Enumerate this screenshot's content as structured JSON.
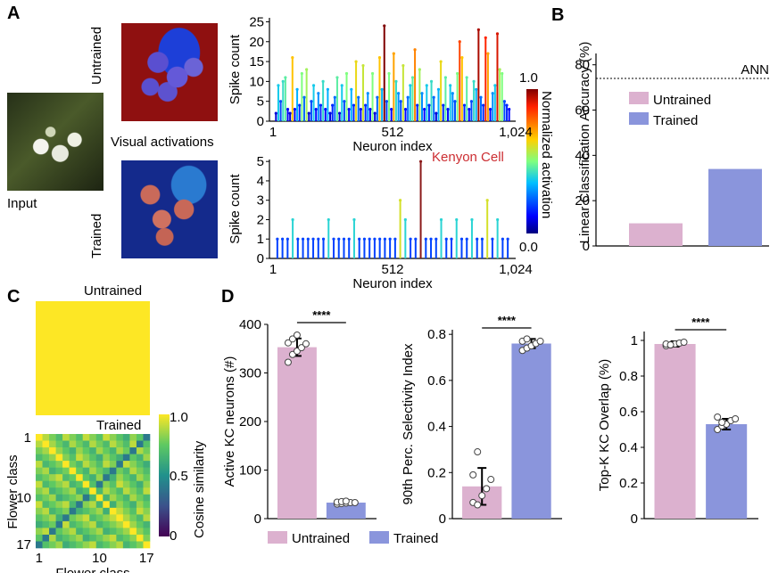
{
  "panels": {
    "a": "A",
    "b": "B",
    "c": "C",
    "d": "D"
  },
  "panel_a": {
    "input_label": "Input",
    "untrained_label": "Untrained",
    "trained_label": "Trained",
    "visual_activations_label": "Visual activations",
    "kenyon_cell_label": "Kenyon Cell",
    "colorbar_label": "Normalized activation",
    "colorbar_ticks": [
      "1.0",
      "0.0"
    ]
  },
  "panel_c": {
    "untrained_label": "Untrained",
    "trained_label": "Trained",
    "colorbar_label": "Cosine similarity",
    "colorbar_ticks": [
      "1.0",
      "0.5",
      "0"
    ]
  },
  "legend_d": [
    "Untrained",
    "Trained"
  ],
  "colors": {
    "untrained": "#dcb1cf",
    "trained": "#8a95dc",
    "kenyon": "#cc2e32"
  },
  "chart_data": [
    {
      "id": "untrained_spikes",
      "type": "bar",
      "xlabel": "Neuron index",
      "ylabel": "Spike count",
      "xticks": [
        "1",
        "512",
        "1,024"
      ],
      "yticks": [
        0,
        5,
        10,
        15,
        20,
        25
      ],
      "xlim": [
        1,
        1024
      ],
      "ylim": [
        0,
        26
      ],
      "values": [
        2,
        9,
        5,
        10,
        11,
        3,
        2,
        16,
        3,
        8,
        4,
        12,
        6,
        13,
        2,
        5,
        9,
        3,
        7,
        4,
        10,
        3,
        8,
        2,
        4,
        6,
        11,
        2,
        9,
        5,
        12,
        3,
        8,
        4,
        15,
        6,
        3,
        14,
        4,
        7,
        3,
        12,
        2,
        6,
        16,
        8,
        24,
        5,
        12,
        3,
        17,
        10,
        7,
        5,
        14,
        3,
        6,
        9,
        11,
        18,
        4,
        13,
        7,
        3,
        9,
        4,
        10,
        6,
        2,
        8,
        15,
        4,
        11,
        3,
        9,
        7,
        5,
        12,
        20,
        16,
        4,
        11,
        3,
        5,
        10,
        8,
        23,
        6,
        4,
        21,
        17,
        3,
        7,
        9,
        22,
        13,
        12,
        5,
        4,
        3
      ]
    },
    {
      "id": "trained_spikes",
      "type": "bar",
      "xlabel": "Neuron index",
      "ylabel": "Spike count",
      "xticks": [
        "1",
        "512",
        "1,024"
      ],
      "yticks": [
        0,
        1,
        2,
        3,
        4,
        5
      ],
      "xlim": [
        1,
        1024
      ],
      "ylim": [
        0,
        5.1
      ],
      "values": [
        1,
        1,
        1,
        2,
        1,
        1,
        1,
        1,
        1,
        1,
        2,
        1,
        1,
        1,
        1,
        2,
        1,
        1,
        1,
        1,
        1,
        1,
        1,
        1,
        3,
        2,
        1,
        1,
        5,
        1,
        1,
        1,
        2,
        1,
        1,
        2,
        1,
        1,
        2,
        1,
        1,
        3,
        1,
        2,
        1,
        1
      ]
    },
    {
      "id": "linear_classification",
      "type": "bar",
      "ylabel": "Linear Classification Accuracy (%)",
      "categories": [
        "Untrained",
        "Trained"
      ],
      "values": [
        10,
        34
      ],
      "ylim": [
        0,
        85
      ],
      "yticks": [
        0,
        20,
        40,
        60,
        80
      ],
      "reference_line": {
        "label": "ANN",
        "value": 74
      }
    },
    {
      "id": "untrained_similarity",
      "type": "heatmap",
      "value_uniform": 1.0
    },
    {
      "id": "trained_similarity",
      "type": "heatmap",
      "xlabel": "Flower class",
      "ylabel": "Flower class",
      "xticks": [
        "1",
        "10",
        "17"
      ],
      "yticks": [
        "1",
        "10",
        "17"
      ],
      "size": 17,
      "vrange": [
        0,
        1
      ]
    },
    {
      "id": "active_kc",
      "type": "bar",
      "ylabel": "Active KC neurons (#)",
      "categories": [
        "Untrained",
        "Trained"
      ],
      "values": [
        353,
        33
      ],
      "errors": [
        18,
        3
      ],
      "points": [
        [
          322,
          338,
          345,
          352,
          360,
          362,
          370,
          378
        ],
        [
          30,
          31,
          32,
          33,
          33,
          34,
          35,
          36
        ]
      ],
      "ylim": [
        0,
        400
      ],
      "yticks": [
        0,
        100,
        200,
        300,
        400
      ],
      "significance": "****"
    },
    {
      "id": "selectivity",
      "type": "bar",
      "ylabel": "90th Perc. Selectivity Index",
      "categories": [
        "Untrained",
        "Trained"
      ],
      "values": [
        0.14,
        0.76
      ],
      "errors": [
        0.08,
        0.02
      ],
      "points": [
        [
          0.07,
          0.06,
          0.1,
          0.13,
          0.17,
          0.19,
          0.29
        ],
        [
          0.73,
          0.74,
          0.75,
          0.76,
          0.77,
          0.77,
          0.78
        ]
      ],
      "ylim": [
        0,
        0.82
      ],
      "yticks": [
        0,
        0.2,
        0.4,
        0.6,
        0.8
      ],
      "significance": "****"
    },
    {
      "id": "topk_overlap",
      "type": "bar",
      "ylabel": "Top-K KC Overlap (%)",
      "categories": [
        "Untrained",
        "Trained"
      ],
      "values": [
        0.98,
        0.53
      ],
      "errors": [
        0.015,
        0.03
      ],
      "points": [
        [
          0.97,
          0.975,
          0.98,
          0.985,
          0.99,
          0.98,
          0.975
        ],
        [
          0.5,
          0.52,
          0.53,
          0.55,
          0.56,
          0.57,
          0.54
        ]
      ],
      "ylim": [
        0,
        1.05
      ],
      "yticks": [
        0,
        0.2,
        0.4,
        0.6,
        0.8,
        1.0
      ],
      "significance": "****"
    }
  ]
}
